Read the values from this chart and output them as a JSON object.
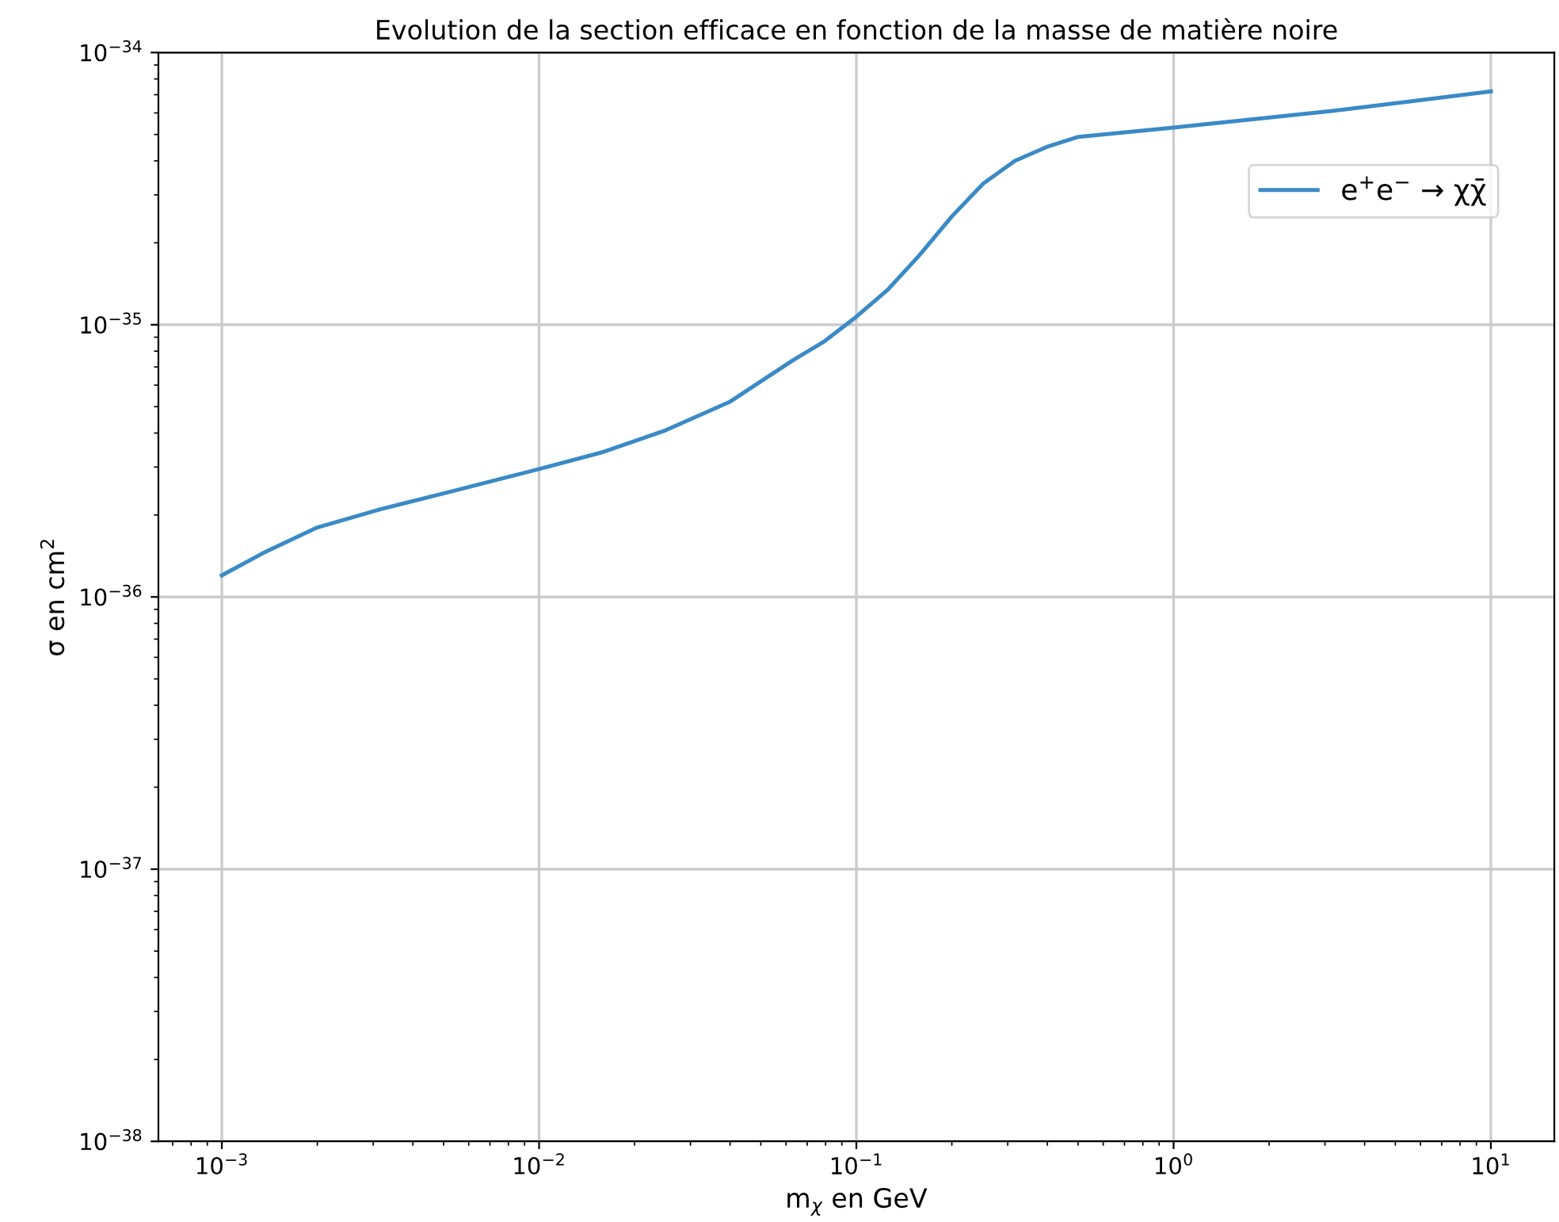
{
  "chart_data": {
    "type": "line",
    "title": "Evolution de la section efficace en fonction de la masse de matière noire",
    "xlabel": "m$_{χ}$ en GeV",
    "ylabel": "σ en cm$^{2}$",
    "log": "xy",
    "grid": true,
    "legend": "top right",
    "line_style": "solid",
    "marker": "none",
    "xlim": [
      0.000631,
      15.85
    ],
    "ylim": [
      1e-38,
      1e-34
    ],
    "xticks": [
      {
        "value": 0.001,
        "label": "10$^{−3}$"
      },
      {
        "value": 0.01,
        "label": "10$^{−2}$"
      },
      {
        "value": 0.1,
        "label": "10$^{−1}$"
      },
      {
        "value": 1,
        "label": "10$^{0}$"
      },
      {
        "value": 10,
        "label": "10$^{1}$"
      }
    ],
    "yticks": [
      {
        "value": 1e-38,
        "label": "10$^{−38}$"
      },
      {
        "value": 1e-37,
        "label": "10$^{−37}$"
      },
      {
        "value": 1e-36,
        "label": "10$^{−36}$"
      },
      {
        "value": 1e-35,
        "label": "10$^{−35}$"
      },
      {
        "value": 1e-34,
        "label": "10$^{−34}$"
      }
    ],
    "series": [
      {
        "name": "e$^{+}$e$^{−}$ → χχ̄",
        "color": "#3a8ac6",
        "x": [
          0.001,
          0.00135,
          0.002,
          0.00316,
          0.005,
          0.01,
          0.0158,
          0.0251,
          0.0398,
          0.0631,
          0.0794,
          0.1,
          0.126,
          0.158,
          0.2,
          0.251,
          0.316,
          0.398,
          0.501,
          1,
          3.16,
          10
        ],
        "values": [
          1.2e-36,
          1.45e-36,
          1.8e-36,
          2.1e-36,
          2.4e-36,
          2.95e-36,
          3.4e-36,
          4.1e-36,
          5.2e-36,
          7.4e-36,
          8.7e-36,
          1.07e-35,
          1.35e-35,
          1.8e-35,
          2.5e-35,
          3.3e-35,
          4e-35,
          4.5e-35,
          4.9e-35,
          5.3e-35,
          6.1e-35,
          7.2e-35
        ]
      }
    ]
  }
}
